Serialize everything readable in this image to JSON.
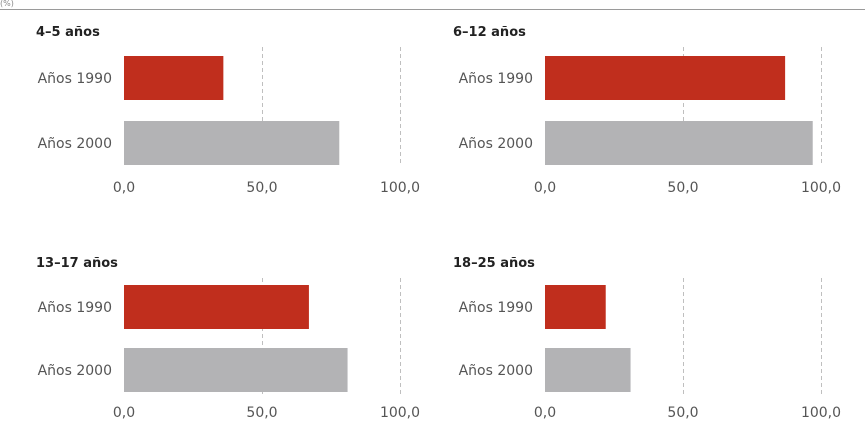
{
  "corner_mark": "(%)",
  "chart_data": [
    {
      "type": "bar",
      "title": "4–5 años",
      "categories": [
        "Años 1990",
        "Años 2000"
      ],
      "values": [
        36,
        78
      ],
      "xlim": [
        0,
        100
      ],
      "ticks": [
        "0,0",
        "50,0",
        "100,0"
      ],
      "grid": true
    },
    {
      "type": "bar",
      "title": "6–12 años",
      "categories": [
        "Años 1990",
        "Años 2000"
      ],
      "values": [
        87,
        97
      ],
      "xlim": [
        0,
        100
      ],
      "ticks": [
        "0,0",
        "50,0",
        "100,0"
      ],
      "grid": true
    },
    {
      "type": "bar",
      "title": "13–17 años",
      "categories": [
        "Años 1990",
        "Años 2000"
      ],
      "values": [
        67,
        81
      ],
      "xlim": [
        0,
        100
      ],
      "ticks": [
        "0,0",
        "50,0",
        "100,0"
      ],
      "grid": true
    },
    {
      "type": "bar",
      "title": "18–25 años",
      "categories": [
        "Años 1990",
        "Años 2000"
      ],
      "values": [
        22,
        31
      ],
      "xlim": [
        0,
        100
      ],
      "ticks": [
        "0,0",
        "50,0",
        "100,0"
      ],
      "grid": true
    }
  ],
  "colors": [
    "#c02e1d",
    "#b3b3b5"
  ]
}
